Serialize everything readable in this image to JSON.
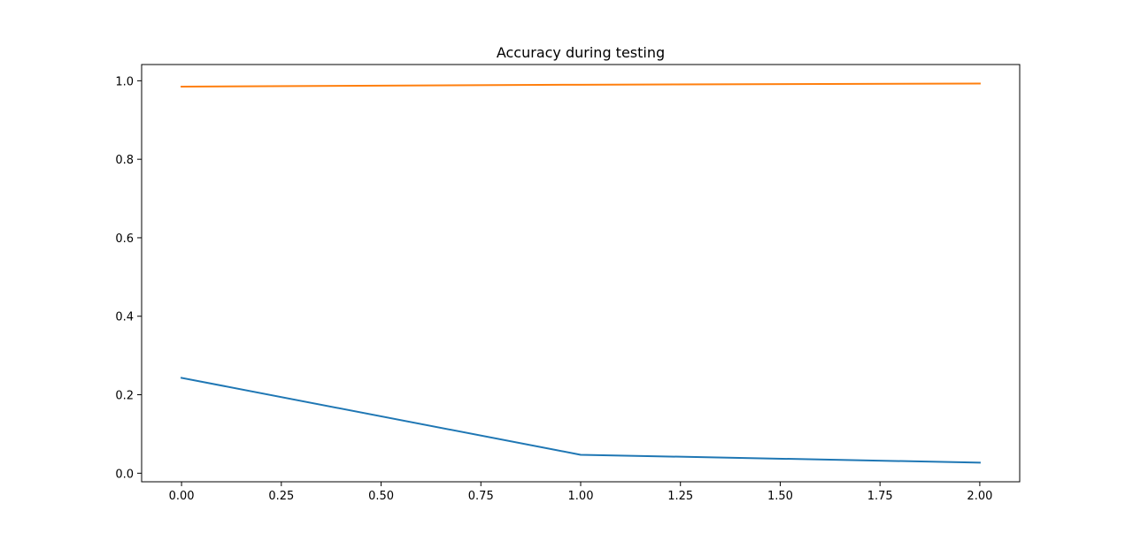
{
  "chart_data": {
    "type": "line",
    "title": "Accuracy during testing",
    "xlabel": "",
    "ylabel": "",
    "x": [
      0,
      1,
      2
    ],
    "series": [
      {
        "values": [
          0.243,
          0.047,
          0.027
        ],
        "color": "#1f77b4"
      },
      {
        "values": [
          0.985,
          0.99,
          0.993
        ],
        "color": "#ff7f0e"
      }
    ],
    "xlim": [
      -0.1,
      2.1
    ],
    "ylim": [
      -0.0218,
      1.0414
    ],
    "xticks": [
      0,
      0.25,
      0.5,
      0.75,
      1.0,
      1.25,
      1.5,
      1.75,
      2.0
    ],
    "xtick_labels": [
      "0.00",
      "0.25",
      "0.50",
      "0.75",
      "1.00",
      "1.25",
      "1.50",
      "1.75",
      "2.00"
    ],
    "yticks": [
      0,
      0.2,
      0.4,
      0.6,
      0.8,
      1.0
    ],
    "ytick_labels": [
      "0.0",
      "0.2",
      "0.4",
      "0.6",
      "0.8",
      "1.0"
    ],
    "grid": false,
    "legend": "none"
  }
}
